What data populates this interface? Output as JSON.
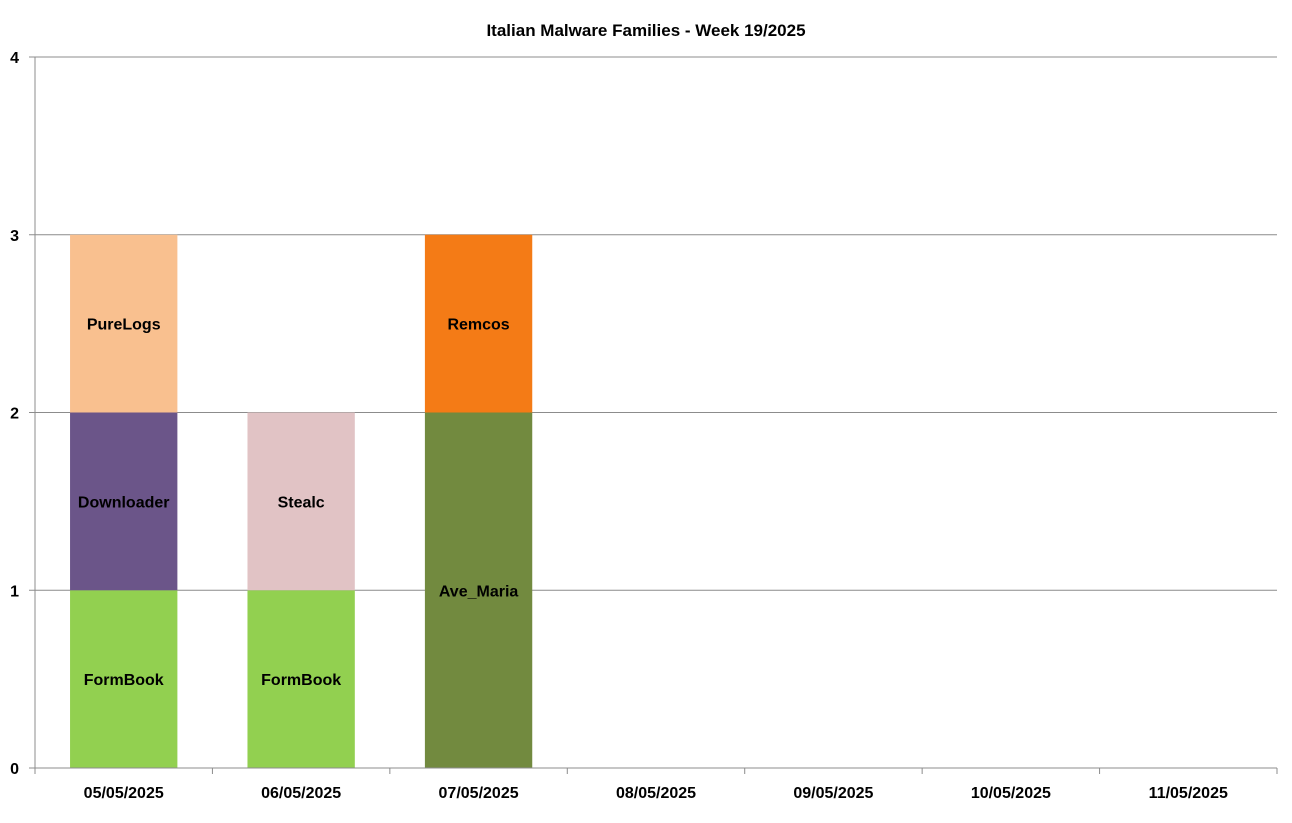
{
  "chart_data": {
    "type": "bar",
    "stacked": true,
    "title": "Italian Malware Families - Week 19/2025",
    "xlabel": "",
    "ylabel": "",
    "ylim": [
      0,
      4
    ],
    "yticks": [
      "0",
      "1",
      "2",
      "3",
      "4"
    ],
    "grid": true,
    "legend": "none",
    "categories": [
      "05/05/2025",
      "06/05/2025",
      "07/05/2025",
      "08/05/2025",
      "09/05/2025",
      "10/05/2025",
      "11/05/2025"
    ],
    "segments": [
      {
        "category": "05/05/2025",
        "label": "FormBook",
        "value": 1,
        "color": "#92d050"
      },
      {
        "category": "05/05/2025",
        "label": "Downloader",
        "value": 1,
        "color": "#6b5589"
      },
      {
        "category": "05/05/2025",
        "label": "PureLogs",
        "value": 1,
        "color": "#f9c08f"
      },
      {
        "category": "06/05/2025",
        "label": "FormBook",
        "value": 1,
        "color": "#92d050"
      },
      {
        "category": "06/05/2025",
        "label": "Stealc",
        "value": 1,
        "color": "#e1c3c5"
      },
      {
        "category": "07/05/2025",
        "label": "Ave_Maria",
        "value": 2,
        "color": "#728a3f"
      },
      {
        "category": "07/05/2025",
        "label": "Remcos",
        "value": 1,
        "color": "#f47b16"
      }
    ]
  }
}
